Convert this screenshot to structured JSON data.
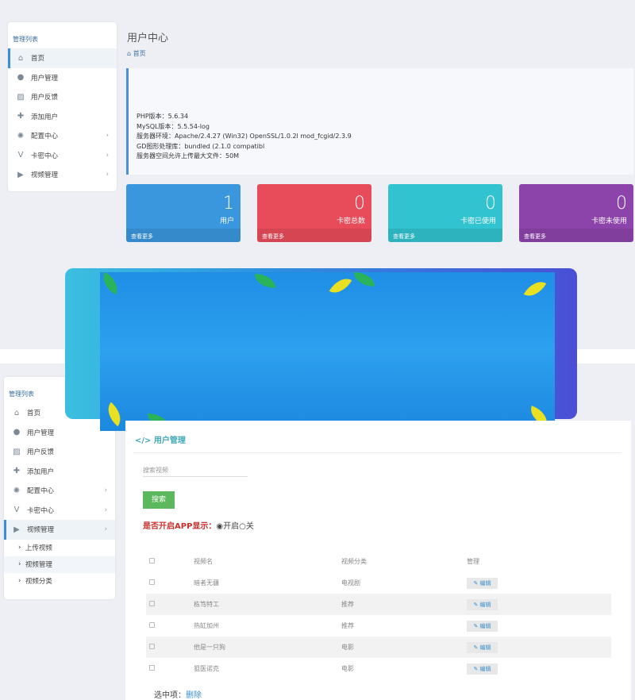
{
  "sidebar_top": {
    "title": "管理列表",
    "items": [
      {
        "label": "首页",
        "icon": "home-icon"
      },
      {
        "label": "用户管理",
        "icon": "user-icon"
      },
      {
        "label": "用户反馈",
        "icon": "edit-icon"
      },
      {
        "label": "添加用户",
        "icon": "user-plus-icon"
      },
      {
        "label": "配置中心",
        "icon": "gear-icon"
      },
      {
        "label": "卡密中心",
        "icon": "vimeo-icon"
      },
      {
        "label": "视频管理",
        "icon": "play-icon"
      }
    ]
  },
  "header": {
    "title": "用户中心",
    "breadcrumb": "首页"
  },
  "server_info": [
    "PHP版本：5.6.34",
    "MySQL版本：5.5.54-log",
    "服务器环境：Apache/2.4.27 (Win32) OpenSSL/1.0.2l mod_fcgid/2.3.9",
    "GD图形处理库：bundled (2.1.0 compatibl",
    "服务器空间允许上传最大文件：50M"
  ],
  "cards": [
    {
      "value": "1",
      "label": "用户",
      "more": "查看更多",
      "color": "#3a96dd"
    },
    {
      "value": "0",
      "label": "卡密总数",
      "more": "查看更多",
      "color": "#e84c5a"
    },
    {
      "value": "0",
      "label": "卡密已使用",
      "more": "查看更多",
      "color": "#31c3cf"
    },
    {
      "value": "0",
      "label": "卡密未使用",
      "more": "查看更多",
      "color": "#8c44ab"
    }
  ],
  "sidebar_bottom": {
    "title": "管理列表",
    "items": [
      {
        "label": "首页"
      },
      {
        "label": "用户管理"
      },
      {
        "label": "用户反馈"
      },
      {
        "label": "添加用户"
      },
      {
        "label": "配置中心"
      },
      {
        "label": "卡密中心"
      },
      {
        "label": "视频管理"
      }
    ],
    "subitems": [
      "上传视频",
      "视频管理",
      "视频分类"
    ]
  },
  "main": {
    "title": "用户管理",
    "search_placeholder": "搜索视频",
    "search_button": "搜索",
    "app_label": "是否开启APP显示：",
    "opt_on": "开启",
    "opt_off": "关",
    "columns": [
      "视频名",
      "视频分类",
      "管理"
    ],
    "rows": [
      {
        "name": "暗者无疆",
        "cat": "电视剧"
      },
      {
        "name": "栋笃特工",
        "cat": "推荐"
      },
      {
        "name": "热缸加州",
        "cat": "推荐"
      },
      {
        "name": "他是一只狗",
        "cat": "电影"
      },
      {
        "name": "狙医诺克",
        "cat": "电影"
      }
    ],
    "edit_label": "编辑",
    "selected_label": "选中项：",
    "delete_label": "删除"
  }
}
